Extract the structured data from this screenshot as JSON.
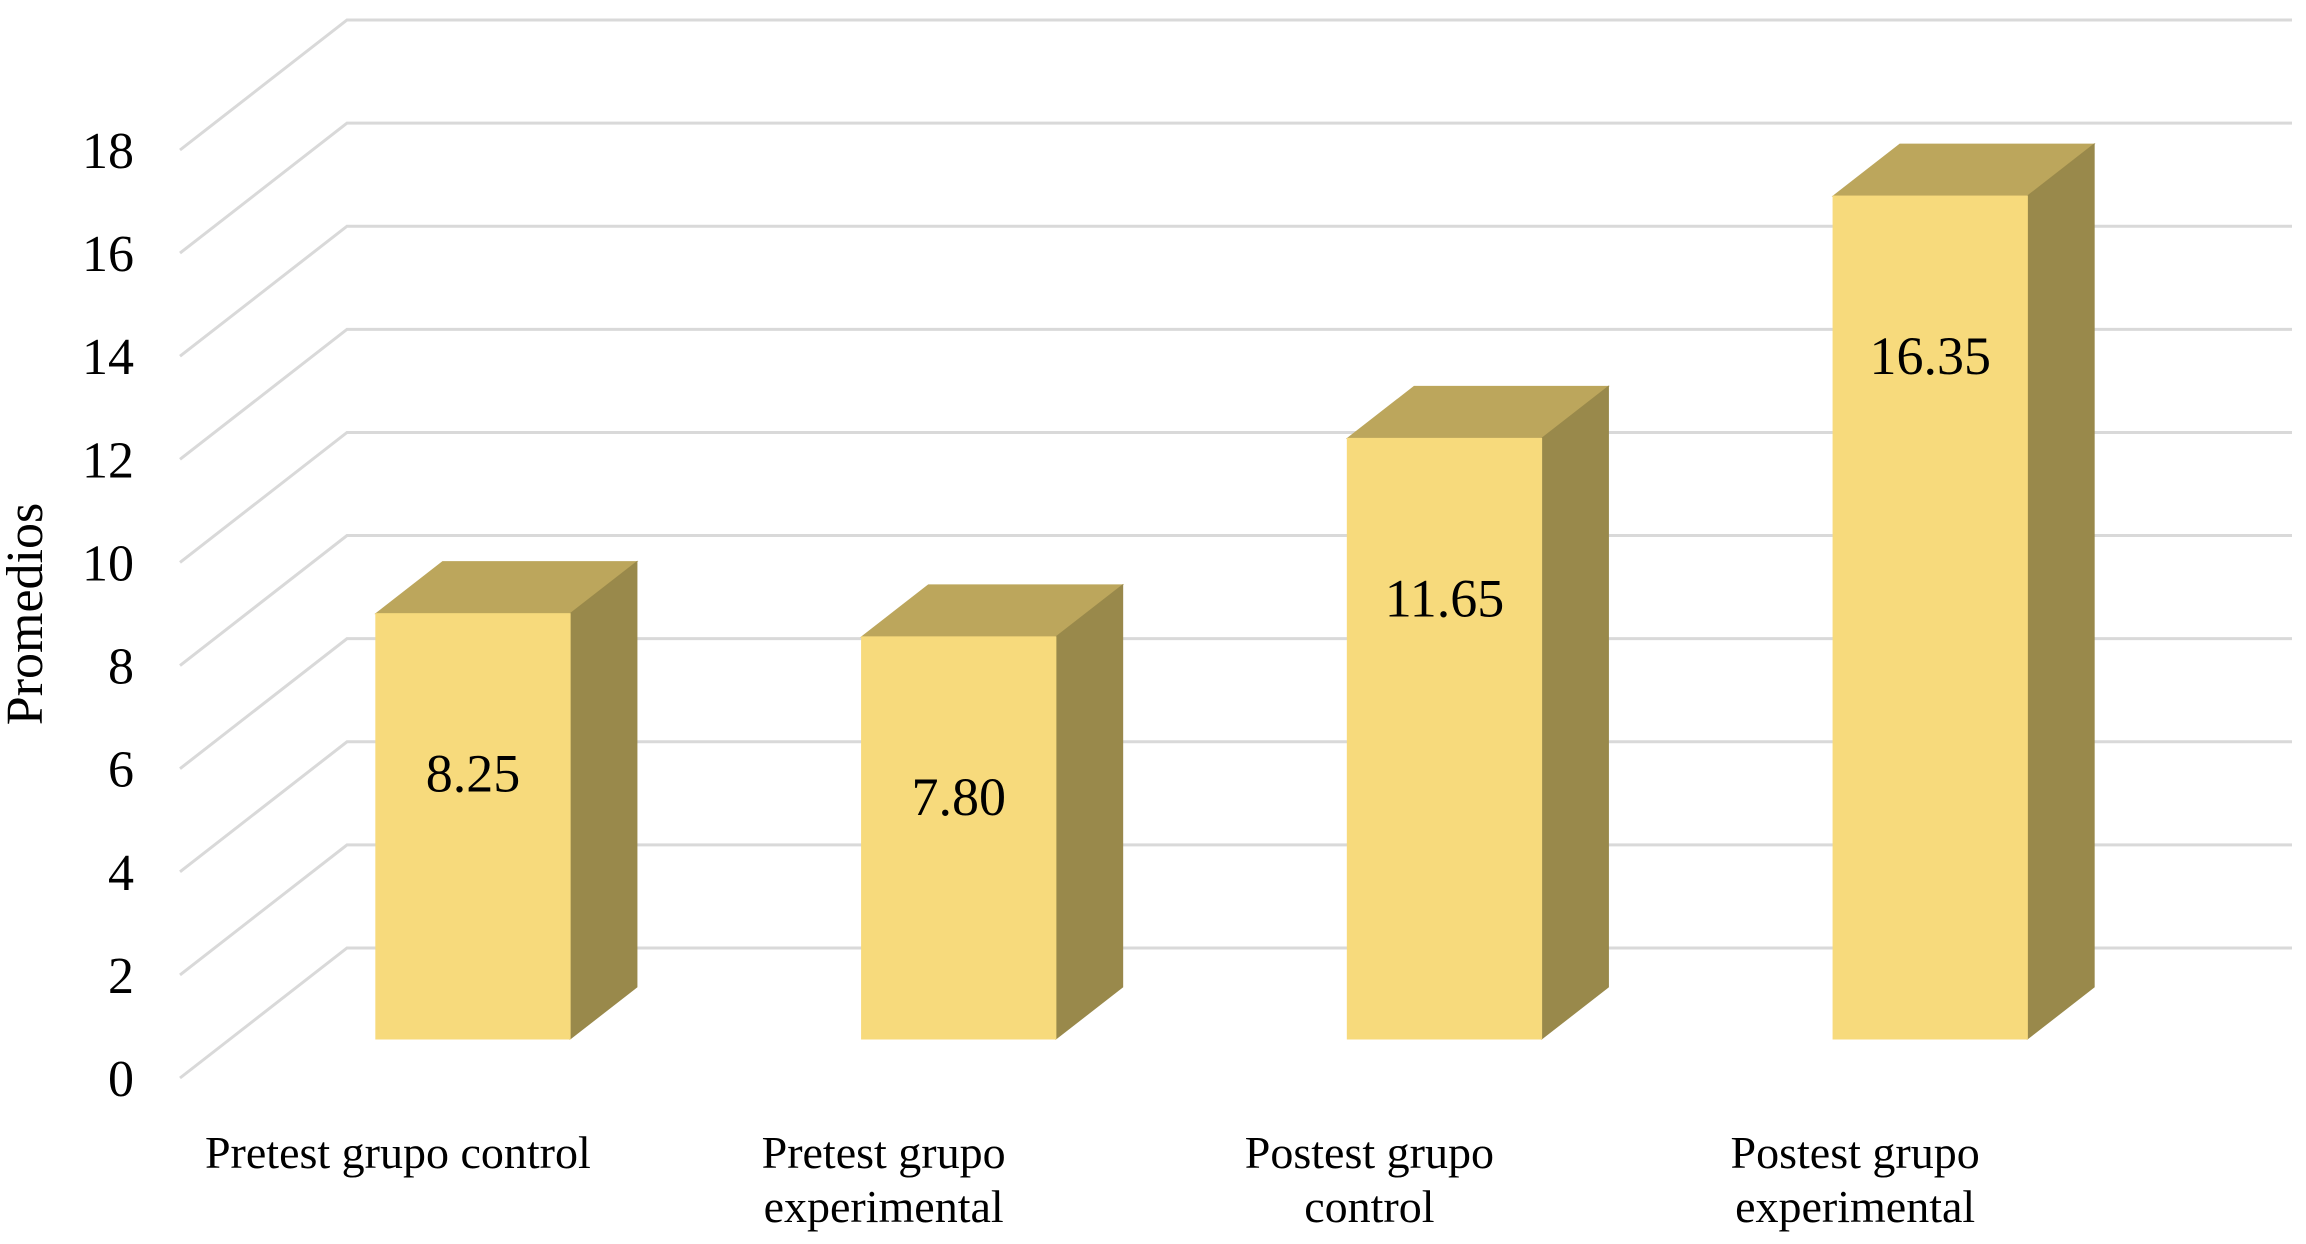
{
  "chart_data": {
    "type": "bar",
    "projection": "3d",
    "title": "",
    "xlabel": "",
    "ylabel": "Promedios",
    "categories": [
      "Pretest grupo control",
      "Pretest grupo\nexperimental",
      "Postest grupo\ncontrol",
      "Postest grupo\nexperimental"
    ],
    "values": [
      8.25,
      7.8,
      11.65,
      16.35
    ],
    "data_labels": [
      "8.25",
      "7.80",
      "11.65",
      "16.35"
    ],
    "ylim": [
      0,
      18
    ],
    "ytick_step": 2,
    "yticks": [
      0,
      2,
      4,
      6,
      8,
      10,
      12,
      14,
      16,
      18
    ],
    "grid": true,
    "legend_position": "none",
    "colors": {
      "bar_front": "#F7DA7C",
      "bar_top": "#BCA65C",
      "bar_side": "#99894B",
      "gridline": "#D9D9D9",
      "text": "#000000",
      "background": "#FFFFFF"
    }
  }
}
